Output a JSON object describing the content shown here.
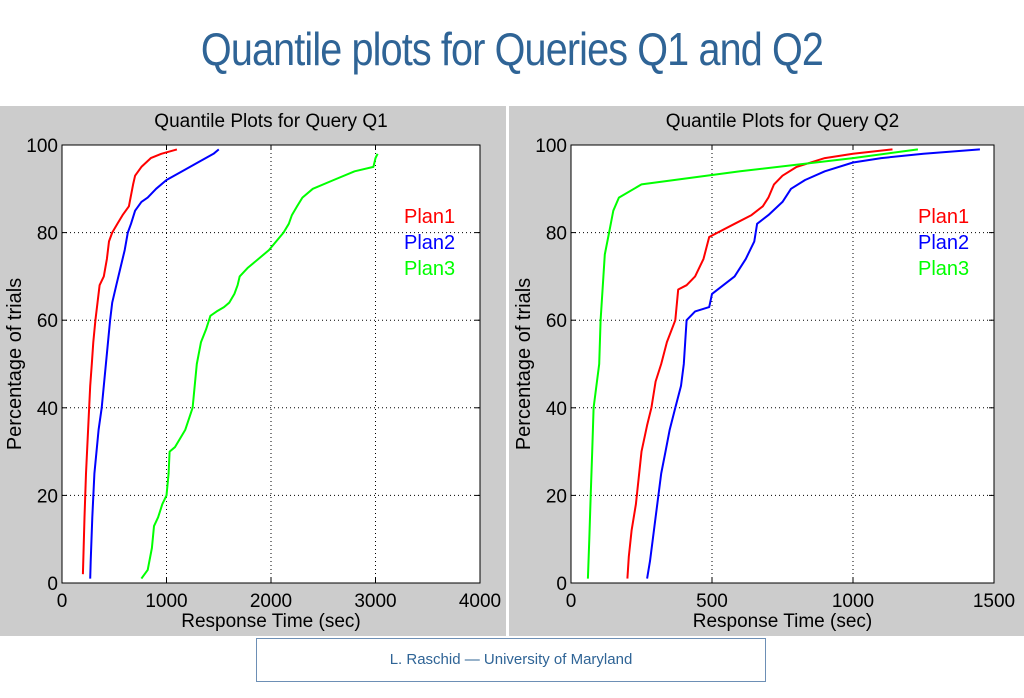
{
  "slide": {
    "title": "Quantile plots for Queries  Q1 and Q2",
    "footer": "L. Raschid — University of Maryland"
  },
  "colors": {
    "title": "#2f6496",
    "panel_bg": "#cccccc",
    "grid": "#000000"
  },
  "chart_data": [
    {
      "type": "line",
      "title": "Quantile Plots for Query Q1",
      "xlabel": "Response Time (sec)",
      "ylabel": "Percentage of trials",
      "xlim": [
        0,
        4000
      ],
      "ylim": [
        0,
        100
      ],
      "xticks": [
        0,
        1000,
        2000,
        3000,
        4000
      ],
      "yticks": [
        0,
        20,
        40,
        60,
        80,
        100
      ],
      "grid": true,
      "legend": "top-right",
      "series": [
        {
          "name": "Plan1",
          "color": "#ff0000",
          "points": [
            [
              200,
              2
            ],
            [
              205,
              6
            ],
            [
              215,
              15
            ],
            [
              230,
              25
            ],
            [
              250,
              35
            ],
            [
              270,
              45
            ],
            [
              285,
              50
            ],
            [
              300,
              55
            ],
            [
              320,
              60
            ],
            [
              340,
              64
            ],
            [
              360,
              68
            ],
            [
              400,
              70
            ],
            [
              430,
              74
            ],
            [
              450,
              78
            ],
            [
              480,
              80
            ],
            [
              530,
              82
            ],
            [
              580,
              84
            ],
            [
              640,
              86
            ],
            [
              680,
              91
            ],
            [
              700,
              93
            ],
            [
              760,
              95
            ],
            [
              850,
              97
            ],
            [
              950,
              98
            ],
            [
              1100,
              99
            ]
          ]
        },
        {
          "name": "Plan2",
          "color": "#0000ff",
          "points": [
            [
              270,
              1
            ],
            [
              275,
              5
            ],
            [
              290,
              15
            ],
            [
              310,
              25
            ],
            [
              330,
              30
            ],
            [
              350,
              35
            ],
            [
              380,
              40
            ],
            [
              400,
              45
            ],
            [
              420,
              50
            ],
            [
              440,
              55
            ],
            [
              460,
              60
            ],
            [
              480,
              64
            ],
            [
              520,
              68
            ],
            [
              560,
              72
            ],
            [
              600,
              76
            ],
            [
              630,
              80
            ],
            [
              660,
              82
            ],
            [
              700,
              85
            ],
            [
              760,
              87
            ],
            [
              820,
              88
            ],
            [
              900,
              90
            ],
            [
              1000,
              92
            ],
            [
              1150,
              94
            ],
            [
              1300,
              96
            ],
            [
              1450,
              98
            ],
            [
              1500,
              99
            ]
          ]
        },
        {
          "name": "Plan3",
          "color": "#00ff00",
          "points": [
            [
              760,
              1
            ],
            [
              820,
              3
            ],
            [
              860,
              8
            ],
            [
              880,
              13
            ],
            [
              920,
              15
            ],
            [
              960,
              18
            ],
            [
              1000,
              20
            ],
            [
              1020,
              25
            ],
            [
              1030,
              30
            ],
            [
              1080,
              31
            ],
            [
              1180,
              35
            ],
            [
              1250,
              40
            ],
            [
              1270,
              45
            ],
            [
              1290,
              50
            ],
            [
              1330,
              55
            ],
            [
              1380,
              58
            ],
            [
              1420,
              61
            ],
            [
              1480,
              62
            ],
            [
              1550,
              63
            ],
            [
              1600,
              64
            ],
            [
              1650,
              66
            ],
            [
              1680,
              68
            ],
            [
              1700,
              70
            ],
            [
              1780,
              72
            ],
            [
              1880,
              74
            ],
            [
              1980,
              76
            ],
            [
              2050,
              78
            ],
            [
              2120,
              80
            ],
            [
              2170,
              82
            ],
            [
              2200,
              84
            ],
            [
              2250,
              86
            ],
            [
              2300,
              88
            ],
            [
              2400,
              90
            ],
            [
              2600,
              92
            ],
            [
              2800,
              94
            ],
            [
              2980,
              95
            ],
            [
              3000,
              97
            ],
            [
              3020,
              98
            ]
          ]
        }
      ]
    },
    {
      "type": "line",
      "title": "Quantile Plots for Query Q2",
      "xlabel": "Response Time (sec)",
      "ylabel": "Percentage of trials",
      "xlim": [
        0,
        1500
      ],
      "ylim": [
        0,
        100
      ],
      "xticks": [
        0,
        500,
        1000,
        1500
      ],
      "yticks": [
        0,
        20,
        40,
        60,
        80,
        100
      ],
      "grid": true,
      "legend": "top-right",
      "series": [
        {
          "name": "Plan1",
          "color": "#ff0000",
          "points": [
            [
              200,
              1
            ],
            [
              205,
              6
            ],
            [
              215,
              12
            ],
            [
              230,
              18
            ],
            [
              240,
              24
            ],
            [
              250,
              30
            ],
            [
              270,
              36
            ],
            [
              285,
              40
            ],
            [
              300,
              46
            ],
            [
              320,
              50
            ],
            [
              340,
              55
            ],
            [
              370,
              60
            ],
            [
              380,
              67
            ],
            [
              410,
              68
            ],
            [
              440,
              70
            ],
            [
              470,
              74
            ],
            [
              490,
              79
            ],
            [
              520,
              80
            ],
            [
              580,
              82
            ],
            [
              640,
              84
            ],
            [
              680,
              86
            ],
            [
              700,
              88
            ],
            [
              720,
              91
            ],
            [
              750,
              93
            ],
            [
              800,
              95
            ],
            [
              900,
              97
            ],
            [
              1000,
              98
            ],
            [
              1140,
              99
            ]
          ]
        },
        {
          "name": "Plan2",
          "color": "#0000ff",
          "points": [
            [
              270,
              1
            ],
            [
              280,
              5
            ],
            [
              290,
              10
            ],
            [
              300,
              15
            ],
            [
              310,
              20
            ],
            [
              320,
              25
            ],
            [
              335,
              30
            ],
            [
              350,
              35
            ],
            [
              370,
              40
            ],
            [
              390,
              45
            ],
            [
              400,
              50
            ],
            [
              405,
              55
            ],
            [
              410,
              60
            ],
            [
              440,
              62
            ],
            [
              490,
              63
            ],
            [
              500,
              66
            ],
            [
              540,
              68
            ],
            [
              580,
              70
            ],
            [
              620,
              74
            ],
            [
              650,
              78
            ],
            [
              660,
              82
            ],
            [
              700,
              84
            ],
            [
              750,
              87
            ],
            [
              780,
              90
            ],
            [
              830,
              92
            ],
            [
              900,
              94
            ],
            [
              1000,
              96
            ],
            [
              1100,
              97
            ],
            [
              1250,
              98
            ],
            [
              1450,
              99
            ]
          ]
        },
        {
          "name": "Plan3",
          "color": "#00ff00",
          "points": [
            [
              60,
              1
            ],
            [
              65,
              10
            ],
            [
              70,
              20
            ],
            [
              75,
              30
            ],
            [
              80,
              40
            ],
            [
              90,
              45
            ],
            [
              100,
              50
            ],
            [
              105,
              60
            ],
            [
              115,
              70
            ],
            [
              120,
              75
            ],
            [
              135,
              80
            ],
            [
              150,
              85
            ],
            [
              170,
              88
            ],
            [
              250,
              91
            ],
            [
              600,
              94
            ],
            [
              1000,
              97
            ],
            [
              1230,
              99
            ]
          ]
        }
      ]
    }
  ]
}
